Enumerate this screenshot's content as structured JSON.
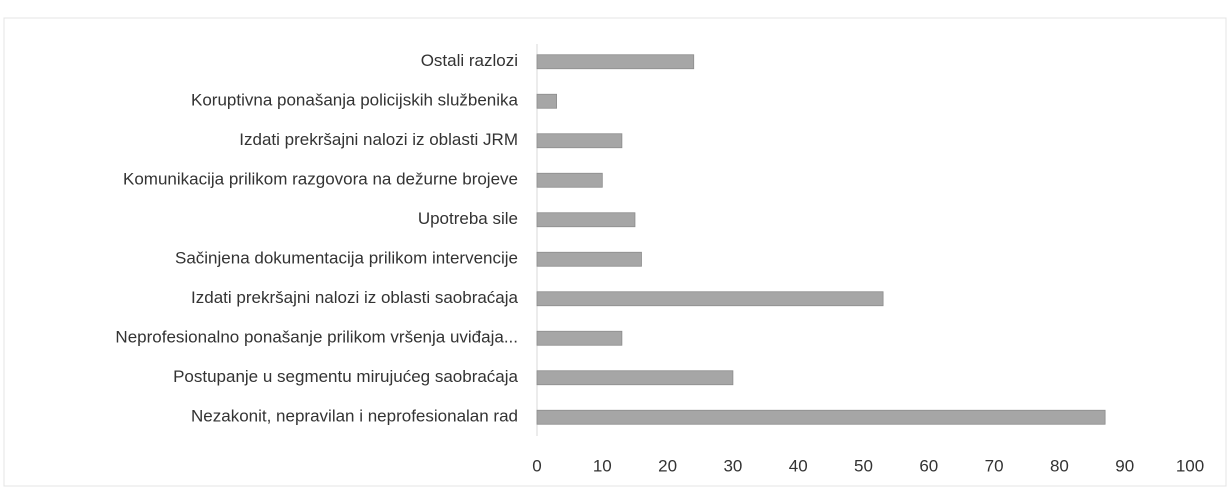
{
  "chart_data": {
    "type": "bar",
    "orientation": "horizontal",
    "categories": [
      "Ostali razlozi",
      "Koruptivna ponašanja policijskih službenika",
      "Izdati prekršajni nalozi iz oblasti JRM",
      "Komunikacija prilikom razgovora na dežurne brojeve",
      "Upotreba sile",
      "Sačinjena dokumentacija prilikom intervencije",
      "Izdati prekršajni nalozi iz oblasti saobraćaja",
      "Neprofesionalno ponašanje prilikom vršenja uviđaja...",
      "Postupanje u segmentu mirujućeg saobraćaja",
      "Nezakonit, nepravilan i neprofesionalan rad"
    ],
    "values": [
      24,
      3,
      13,
      10,
      15,
      16,
      53,
      13,
      30,
      87
    ],
    "color": "#a6a6a6",
    "xlim": [
      0,
      100
    ],
    "xticks": [
      0,
      10,
      20,
      30,
      40,
      50,
      60,
      70,
      80,
      90,
      100
    ],
    "grid": false
  }
}
